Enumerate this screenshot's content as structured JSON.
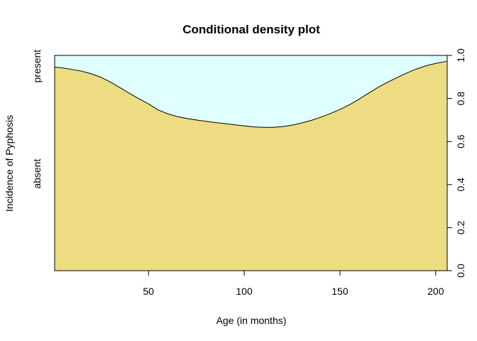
{
  "chart_data": {
    "type": "area",
    "title": "Conditional density plot",
    "xlabel": "Age (in months)",
    "ylabel": "Incidence of Pyphosis",
    "xlim": [
      1,
      206
    ],
    "ylim": [
      0,
      1
    ],
    "x_ticks": [
      50,
      100,
      150,
      200
    ],
    "right_axis_ticks": [
      "0.0",
      "0.2",
      "0.4",
      "0.6",
      "0.8",
      "1.0"
    ],
    "y_category_labels": [
      {
        "label": "absent",
        "position": 0.45
      },
      {
        "label": "present",
        "position": 0.95
      }
    ],
    "grid": false,
    "series": [
      {
        "name": "absent",
        "color": "#EEDC82",
        "x": [
          1,
          5,
          10,
          15,
          20,
          25,
          30,
          35,
          40,
          45,
          50,
          55,
          60,
          65,
          70,
          75,
          80,
          85,
          90,
          95,
          100,
          105,
          110,
          115,
          120,
          125,
          130,
          135,
          140,
          145,
          150,
          155,
          160,
          165,
          170,
          175,
          180,
          185,
          190,
          195,
          200,
          206
        ],
        "y": [
          0.946,
          0.942,
          0.935,
          0.927,
          0.915,
          0.899,
          0.877,
          0.851,
          0.824,
          0.799,
          0.775,
          0.747,
          0.729,
          0.716,
          0.707,
          0.7,
          0.694,
          0.688,
          0.683,
          0.678,
          0.673,
          0.668,
          0.666,
          0.666,
          0.669,
          0.676,
          0.686,
          0.698,
          0.713,
          0.73,
          0.749,
          0.771,
          0.797,
          0.825,
          0.852,
          0.876,
          0.898,
          0.919,
          0.937,
          0.952,
          0.963,
          0.973
        ]
      },
      {
        "name": "present",
        "color": "#E0FFFF"
      }
    ]
  }
}
